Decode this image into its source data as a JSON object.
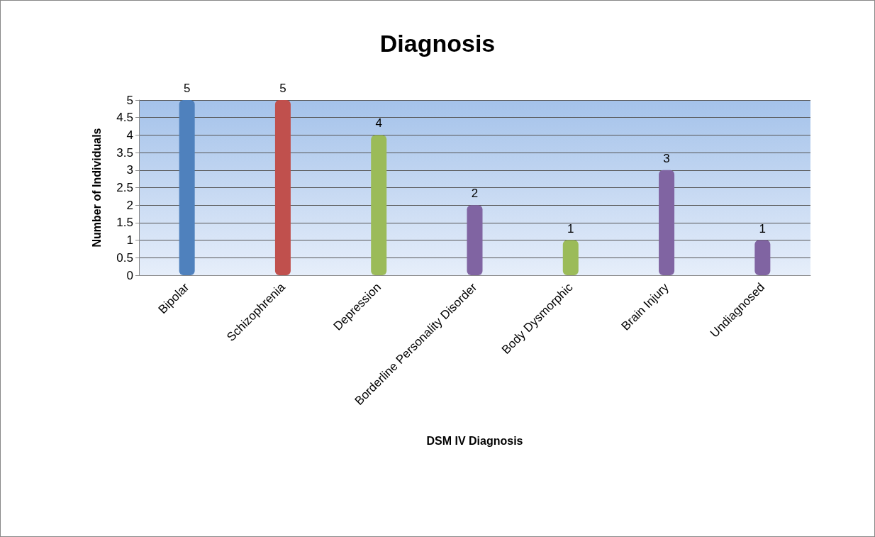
{
  "chart_data": {
    "type": "bar",
    "title": "Diagnosis",
    "xlabel": "DSM IV Diagnosis",
    "ylabel": "Number of Individuals",
    "categories": [
      "Bipolar",
      "Schizophrenia",
      "Depression",
      "Borderline Personality Disorder",
      "Body Dysmorphic",
      "Brain Injury",
      "Undiagnosed"
    ],
    "values": [
      5,
      5,
      4,
      2,
      1,
      3,
      1
    ],
    "colors": [
      "#4f81bd",
      "#c0504d",
      "#9bbb59",
      "#8064a2",
      "#9bbb59",
      "#8064a2",
      "#8064a2"
    ],
    "ylim": [
      0,
      5
    ],
    "yticks": [
      0,
      0.5,
      1,
      1.5,
      2,
      2.5,
      3,
      3.5,
      4,
      4.5,
      5
    ],
    "grid": "y",
    "data_labels": true
  }
}
